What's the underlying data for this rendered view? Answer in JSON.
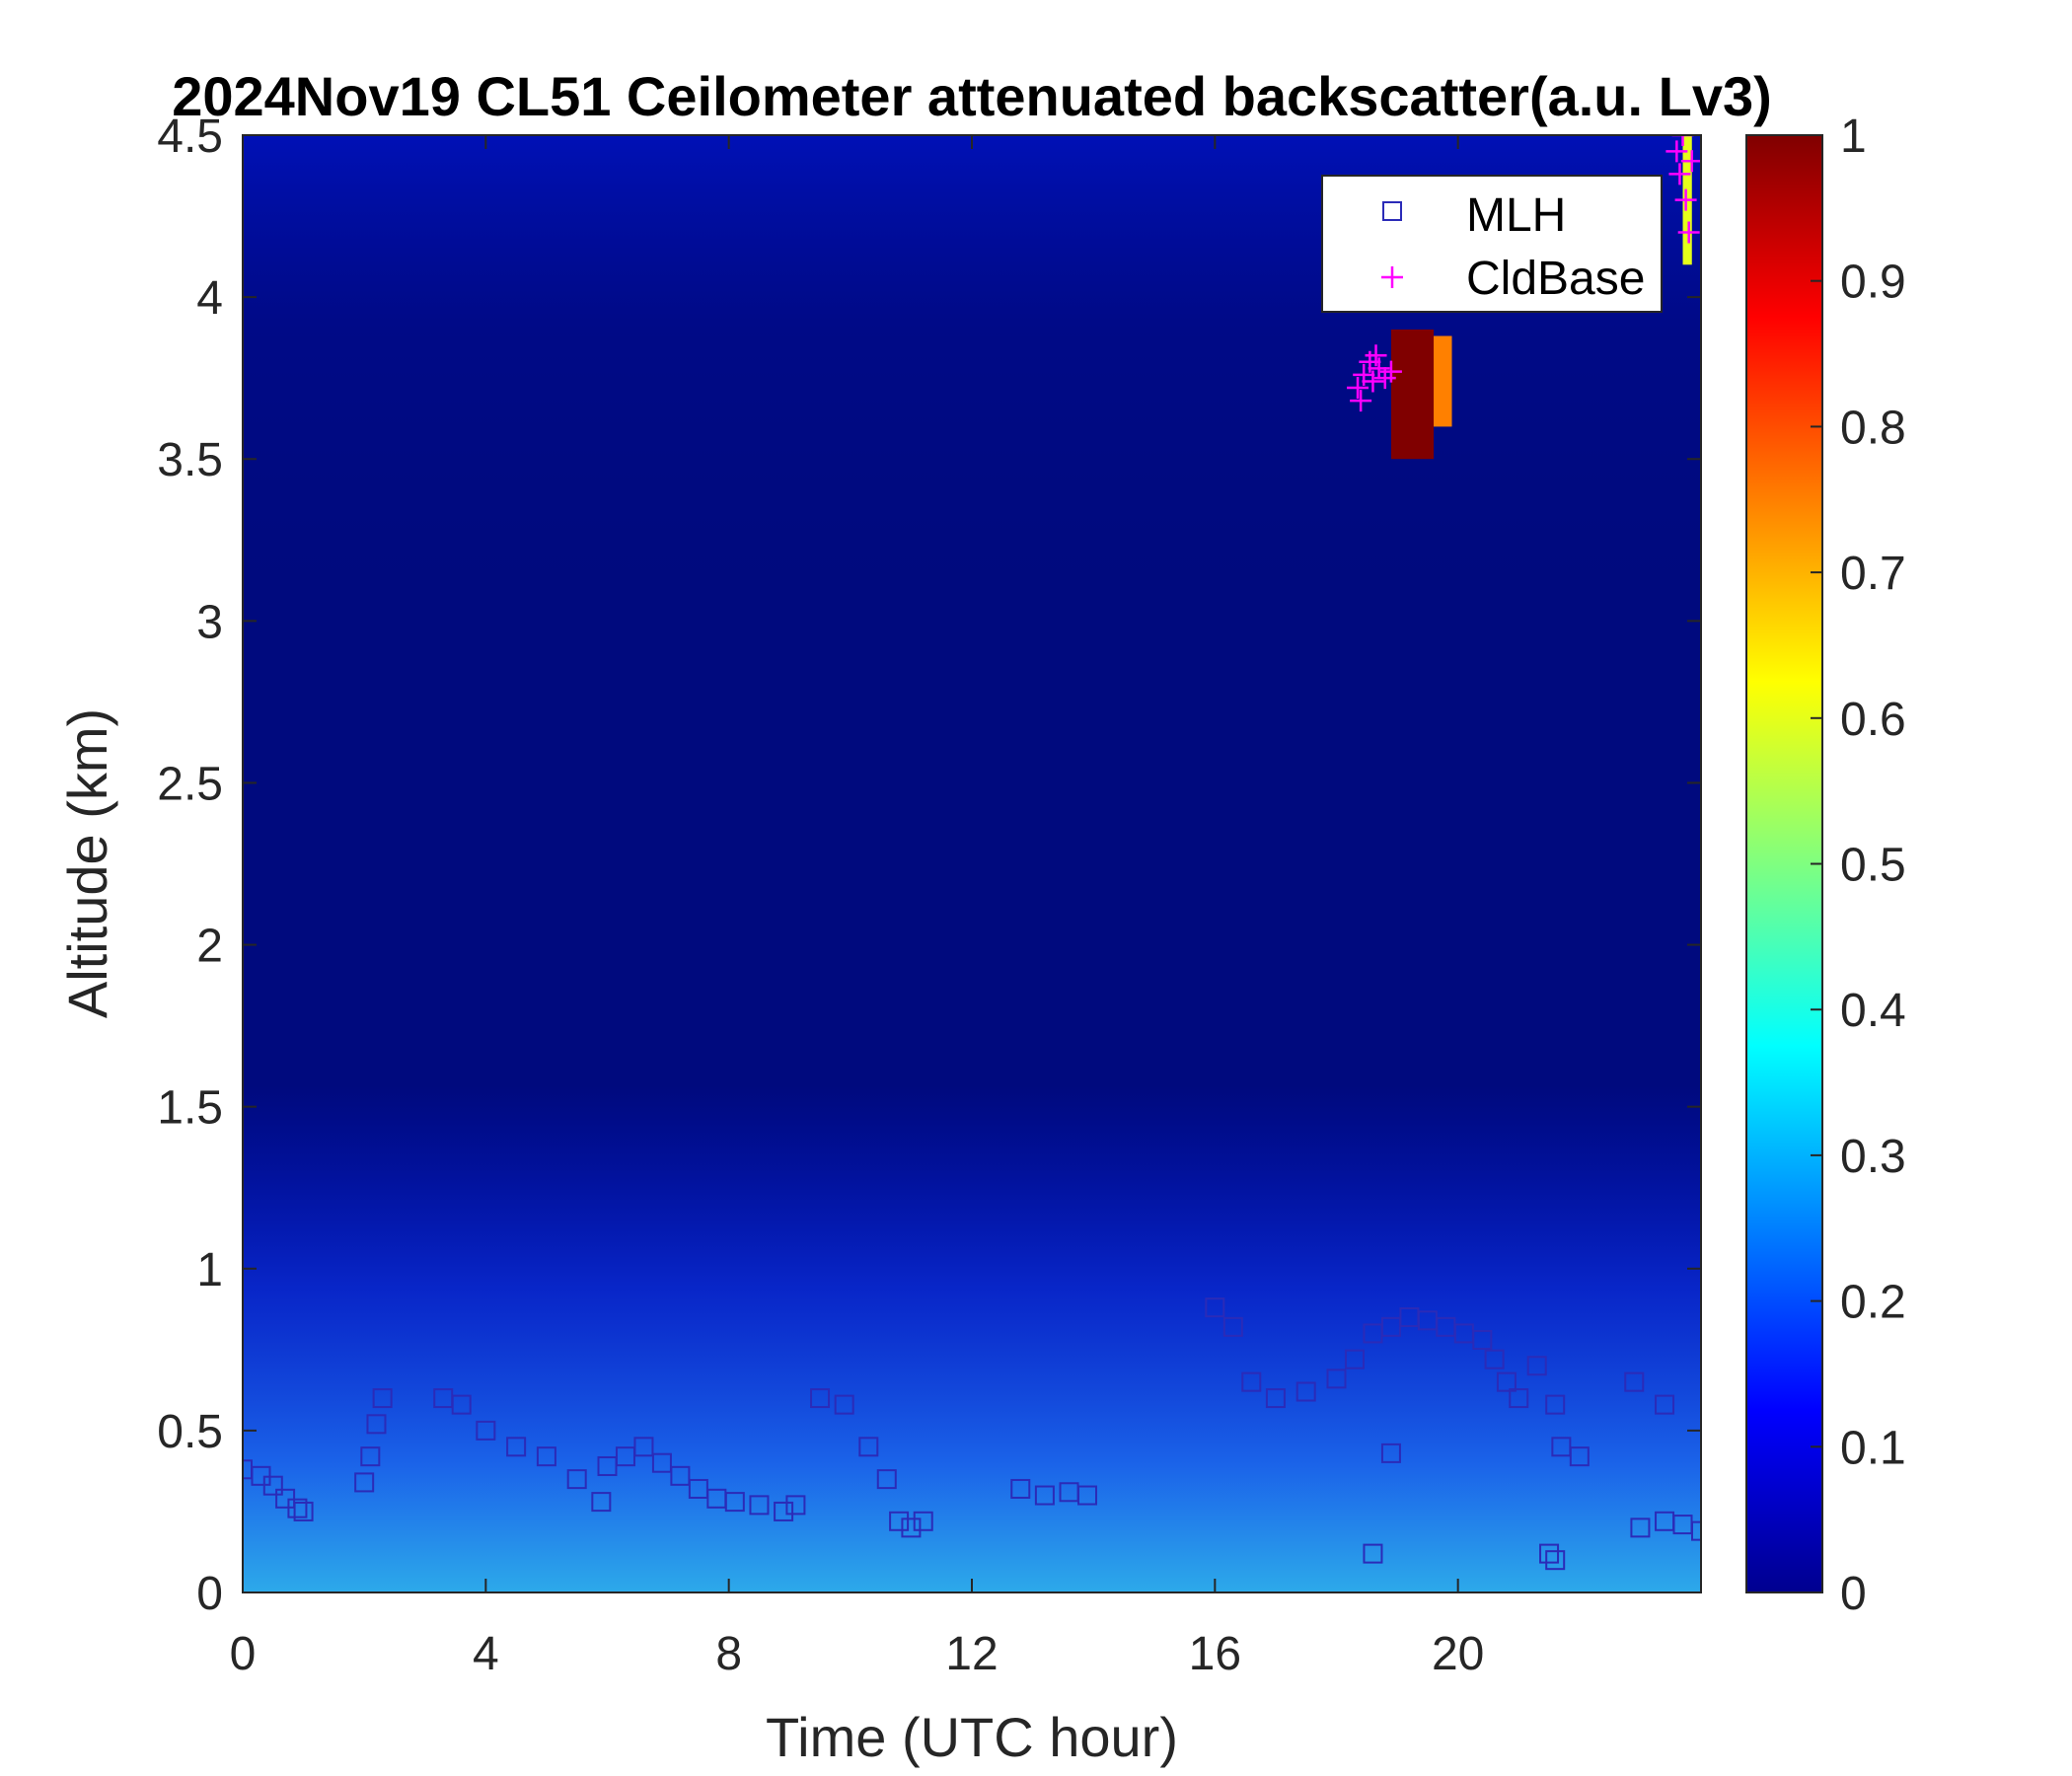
{
  "chart_data": {
    "type": "heatmap",
    "title": "2024Nov19 CL51 Ceilometer attenuated backscatter(a.u. Lv3)",
    "xlabel": "Time (UTC hour)",
    "ylabel": "Altitude (km)",
    "xlim": [
      0,
      24
    ],
    "ylim": [
      0,
      4.5
    ],
    "xticks": [
      "0",
      "4",
      "8",
      "12",
      "16",
      "20"
    ],
    "xtick_values": [
      0,
      4,
      8,
      12,
      16,
      20
    ],
    "yticks": [
      "0",
      "0.5",
      "1",
      "1.5",
      "2",
      "2.5",
      "3",
      "3.5",
      "4",
      "4.5"
    ],
    "ytick_values": [
      0,
      0.5,
      1,
      1.5,
      2,
      2.5,
      3,
      3.5,
      4,
      4.5
    ],
    "colorbar": {
      "colormap": "jet",
      "range": [
        0,
        1
      ],
      "ticks": [
        "0",
        "0.1",
        "0.2",
        "0.3",
        "0.4",
        "0.5",
        "0.6",
        "0.7",
        "0.8",
        "0.9",
        "1"
      ],
      "tick_values": [
        0,
        0.1,
        0.2,
        0.3,
        0.4,
        0.5,
        0.6,
        0.7,
        0.8,
        0.9,
        1
      ]
    },
    "background_value": 0.04,
    "features": [
      {
        "name": "surface-aerosol-layer",
        "x_range": [
          0,
          24
        ],
        "y_range": [
          0,
          0.35
        ],
        "value": 0.3
      },
      {
        "name": "boundary-layer",
        "x_range": [
          0,
          24
        ],
        "y_range": [
          0,
          1.0
        ],
        "value": 0.15
      },
      {
        "name": "cloud-layer",
        "x_range": [
          18.9,
          19.6
        ],
        "y_range": [
          3.5,
          3.9
        ],
        "value": 1.0
      },
      {
        "name": "cloud-layer-edge",
        "x_range": [
          19.6,
          19.9
        ],
        "y_range": [
          3.6,
          3.88
        ],
        "value": 0.75
      },
      {
        "name": "high-cloud",
        "x_range": [
          23.7,
          23.85
        ],
        "y_range": [
          4.1,
          4.5
        ],
        "value": 0.6
      }
    ],
    "legend": {
      "position": "top-right",
      "entries": [
        {
          "label": "MLH",
          "marker": "square",
          "color": "#2B2BB8"
        },
        {
          "label": "CldBase",
          "marker": "plus",
          "color": "#FF00FF"
        }
      ]
    },
    "series": [
      {
        "name": "MLH",
        "marker": "square",
        "color": "#2B2BB8",
        "x": [
          0.0,
          0.3,
          0.5,
          0.7,
          0.9,
          1.0,
          2.0,
          2.1,
          2.2,
          2.3,
          3.3,
          3.6,
          4.0,
          4.5,
          5.0,
          5.5,
          5.9,
          6.0,
          6.3,
          6.6,
          6.9,
          7.2,
          7.5,
          7.8,
          8.1,
          8.5,
          8.9,
          9.1,
          9.5,
          9.9,
          10.3,
          10.6,
          10.8,
          11.0,
          11.2,
          12.8,
          13.2,
          13.6,
          13.9,
          16.0,
          16.3,
          16.6,
          17.0,
          17.5,
          18.0,
          18.3,
          18.6,
          18.9,
          19.2,
          19.5,
          19.8,
          20.1,
          20.4,
          20.6,
          20.8,
          21.0,
          21.3,
          21.6,
          21.7,
          22.0,
          23.0,
          23.4,
          23.7,
          24.0
        ],
        "y": [
          0.38,
          0.36,
          0.33,
          0.29,
          0.26,
          0.25,
          0.34,
          0.42,
          0.52,
          0.6,
          0.6,
          0.58,
          0.5,
          0.45,
          0.42,
          0.35,
          0.28,
          0.39,
          0.42,
          0.45,
          0.4,
          0.36,
          0.32,
          0.29,
          0.28,
          0.27,
          0.25,
          0.27,
          0.6,
          0.58,
          0.45,
          0.35,
          0.22,
          0.2,
          0.22,
          0.32,
          0.3,
          0.31,
          0.3,
          0.88,
          0.82,
          0.65,
          0.6,
          0.62,
          0.66,
          0.72,
          0.8,
          0.82,
          0.85,
          0.84,
          0.82,
          0.8,
          0.78,
          0.72,
          0.65,
          0.6,
          0.7,
          0.58,
          0.45,
          0.42,
          0.2,
          0.22,
          0.21,
          0.19
        ]
      },
      {
        "name": "MLH-isolated",
        "marker": "square",
        "color": "#2B2BB8",
        "x": [
          18.6,
          18.9,
          21.5,
          21.6,
          22.9,
          23.4
        ],
        "y": [
          0.12,
          0.43,
          0.12,
          0.1,
          0.65,
          0.58
        ]
      },
      {
        "name": "CldBase",
        "marker": "plus",
        "color": "#FF00FF",
        "x": [
          18.35,
          18.45,
          18.55,
          18.6,
          18.7,
          18.8,
          18.9,
          18.4,
          18.65,
          23.6,
          23.65,
          23.7,
          23.75,
          23.8,
          23.85
        ],
        "y": [
          3.72,
          3.76,
          3.8,
          3.74,
          3.78,
          3.75,
          3.77,
          3.68,
          3.82,
          4.45,
          4.38,
          4.5,
          4.3,
          4.2,
          4.42
        ]
      }
    ]
  }
}
